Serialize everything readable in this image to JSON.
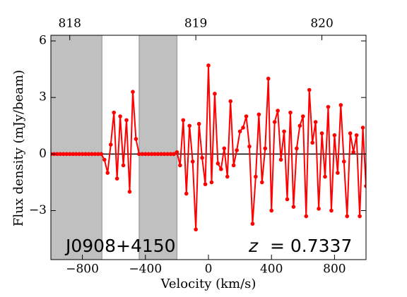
{
  "chart_data": {
    "type": "line",
    "xlabel": "Velocity (km/s)",
    "ylabel": "Flux density (mJy/beam)",
    "source_name": "J0908+4150",
    "redshift_symbol": "z",
    "redshift": "= 0.7337",
    "xlim": [
      -1000,
      1000
    ],
    "ylim": [
      -5.6,
      6.3
    ],
    "xticks": [
      {
        "value": -800,
        "label": "−800"
      },
      {
        "value": -400,
        "label": "−400"
      },
      0,
      400,
      800
    ],
    "yticks": [
      {
        "value": -3,
        "label": "−3"
      },
      0,
      3,
      6
    ],
    "x2lim": [
      817.85,
      820.35
    ],
    "x2ticks": [
      818,
      819,
      820
    ],
    "shaded_regions": [
      [
        -1000,
        -676
      ],
      [
        -440,
        -200
      ]
    ],
    "shade_color": "#c0c0c0",
    "hline": 0,
    "series": [
      {
        "color": "#ff0000",
        "x": [
          -1000,
          -980,
          -960,
          -940,
          -920,
          -900,
          -880,
          -860,
          -840,
          -820,
          -800,
          -780,
          -760,
          -740,
          -720,
          -700,
          -680,
          -660,
          -640,
          -620,
          -600,
          -580,
          -560,
          -540,
          -520,
          -500,
          -480,
          -460,
          -440,
          -420,
          -400,
          -380,
          -360,
          -340,
          -320,
          -300,
          -280,
          -260,
          -240,
          -220,
          -200,
          -180,
          -160,
          -140,
          -120,
          -100,
          -80,
          -60,
          -40,
          -20,
          0,
          20,
          40,
          60,
          80,
          100,
          120,
          140,
          160,
          180,
          200,
          220,
          240,
          260,
          280,
          300,
          320,
          340,
          360,
          380,
          400,
          420,
          440,
          460,
          480,
          500,
          520,
          540,
          560,
          580,
          600,
          620,
          640,
          660,
          680,
          700,
          720,
          740,
          760,
          780,
          800,
          820,
          840,
          860,
          880,
          900,
          920,
          940,
          960,
          980,
          1000
        ],
        "values": [
          0,
          0,
          0,
          0,
          0,
          0,
          0,
          0,
          0,
          0,
          0,
          0,
          0,
          0,
          0,
          0,
          0,
          -0.3,
          -1.0,
          0.5,
          2.2,
          -1.3,
          2.0,
          -0.6,
          1.8,
          -2.0,
          3.3,
          0.8,
          0,
          0,
          0,
          0,
          0,
          0,
          0,
          0,
          0,
          0,
          0,
          0,
          0.1,
          -0.6,
          1.8,
          -2.1,
          1.5,
          -0.4,
          -4.0,
          1.6,
          -0.2,
          -1.6,
          4.7,
          -1.5,
          3.2,
          -0.5,
          -0.8,
          0.3,
          -1.2,
          2.8,
          -0.6,
          0.2,
          1.2,
          1.4,
          2.0,
          0.4,
          -3.7,
          -1.2,
          2.1,
          -1.5,
          0.3,
          4.0,
          -3.0,
          1.7,
          2.3,
          -0.3,
          1.2,
          -2.4,
          2.2,
          -2.8,
          0.3,
          1.5,
          2.0,
          -3.3,
          3.4,
          0.6,
          1.7,
          -2.9,
          1.1,
          -1.2,
          2.5,
          -3.0,
          1.0,
          -1.0,
          2.6,
          -0.4,
          -3.3,
          1.1,
          0.1,
          1.0,
          -3.3,
          1.4,
          -1.7
        ]
      }
    ]
  }
}
